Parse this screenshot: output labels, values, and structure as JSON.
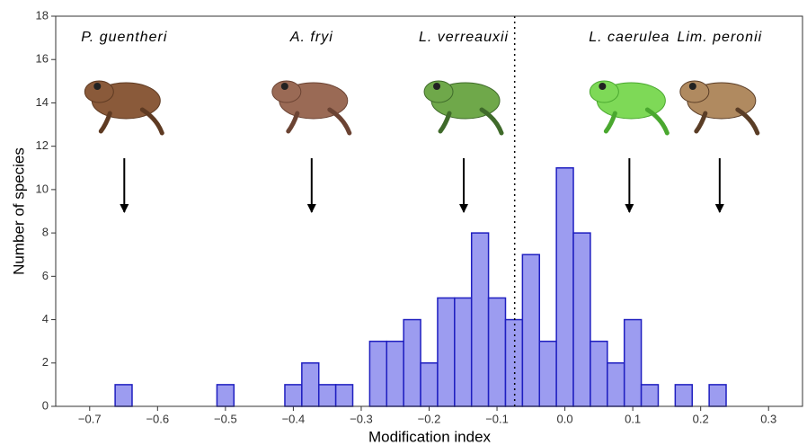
{
  "chart_data": {
    "type": "histogram",
    "xlabel": "Modification index",
    "ylabel": "Number of species",
    "bins": [
      -0.6625,
      -0.6375,
      -0.6125,
      -0.5875,
      -0.5625,
      -0.5375,
      -0.5125,
      -0.4875,
      -0.4625,
      -0.4375,
      -0.4125,
      -0.3875,
      -0.3625,
      -0.3375,
      -0.3125,
      -0.2875,
      -0.2625,
      -0.2375,
      -0.2125,
      -0.1875,
      -0.1625,
      -0.1375,
      -0.1125,
      -0.0875,
      -0.0625,
      -0.0375,
      -0.0125,
      0.0125,
      0.0375,
      0.0625,
      0.0875,
      0.1125,
      0.1375,
      0.1625,
      0.1875,
      0.2125,
      0.2375
    ],
    "values": [
      1,
      0,
      0,
      0,
      0,
      0,
      1,
      0,
      0,
      0,
      1,
      2,
      1,
      1,
      0,
      3,
      3,
      4,
      2,
      5,
      5,
      8,
      5,
      4,
      7,
      3,
      11,
      8,
      3,
      2,
      4,
      1,
      0,
      1,
      0,
      1
    ],
    "color": "#9c9cf0",
    "edge_color": "#1f1fc0",
    "xlim": [
      -0.75,
      0.35
    ],
    "ylim": [
      0,
      18
    ],
    "xticks": [
      {
        "value": -0.7,
        "label": "−0.7"
      },
      {
        "value": -0.6,
        "label": "−0.6"
      },
      {
        "value": -0.5,
        "label": "−0.5"
      },
      {
        "value": -0.4,
        "label": "−0.4"
      },
      {
        "value": -0.3,
        "label": "−0.3"
      },
      {
        "value": -0.2,
        "label": "−0.2"
      },
      {
        "value": -0.1,
        "label": "−0.1"
      },
      {
        "value": 0,
        "label": "0.0"
      },
      0.1,
      0.2,
      0.3
    ],
    "yticks": [
      0,
      2,
      4,
      6,
      8,
      10,
      12,
      14,
      16,
      18
    ],
    "vline": -0.074,
    "annotations": [
      {
        "text": "P. guentheri",
        "x": -0.649
      },
      {
        "text": "A. fryi",
        "x": -0.373
      },
      {
        "text": "L. verreauxii",
        "x": -0.149
      },
      {
        "text": "L. caerulea",
        "x": 0.095
      },
      {
        "text": "Lim. peronii",
        "x": 0.228
      }
    ]
  }
}
